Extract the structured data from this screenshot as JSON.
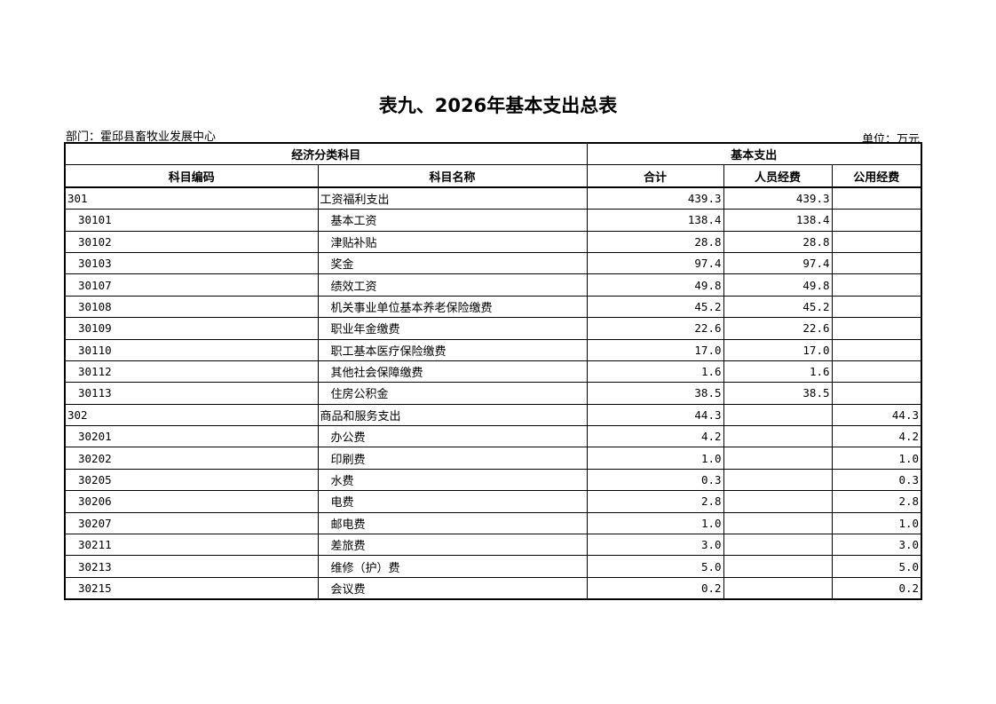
{
  "title": "表九、2026年基本支出总表",
  "department": "部门：霍邱县畜牧业发展中心",
  "unit": "单位：万元",
  "header": {
    "group_left": "经济分类科目",
    "group_right": "基本支出",
    "columns": [
      "科目编码",
      "科目名称",
      "合计",
      "人员经费",
      "公用经费"
    ]
  },
  "rows": [
    {
      "code": "301",
      "name": "工资福利支出",
      "total": "439.3",
      "personnel": "439.3",
      "public": "",
      "level": 1
    },
    {
      "code": "30101",
      "name": "基本工资",
      "total": "138.4",
      "personnel": "138.4",
      "public": "",
      "level": 2
    },
    {
      "code": "30102",
      "name": "津贴补贴",
      "total": "28.8",
      "personnel": "28.8",
      "public": "",
      "level": 2
    },
    {
      "code": "30103",
      "name": "奖金",
      "total": "97.4",
      "personnel": "97.4",
      "public": "",
      "level": 2
    },
    {
      "code": "30107",
      "name": "绩效工资",
      "total": "49.8",
      "personnel": "49.8",
      "public": "",
      "level": 2
    },
    {
      "code": "30108",
      "name": "机关事业单位基本养老保险缴费",
      "total": "45.2",
      "personnel": "45.2",
      "public": "",
      "level": 2
    },
    {
      "code": "30109",
      "name": "职业年金缴费",
      "total": "22.6",
      "personnel": "22.6",
      "public": "",
      "level": 2
    },
    {
      "code": "30110",
      "name": "职工基本医疗保险缴费",
      "total": "17.0",
      "personnel": "17.0",
      "public": "",
      "level": 2
    },
    {
      "code": "30112",
      "name": "其他社会保障缴费",
      "total": "1.6",
      "personnel": "1.6",
      "public": "",
      "level": 2
    },
    {
      "code": "30113",
      "name": "住房公积金",
      "total": "38.5",
      "personnel": "38.5",
      "public": "",
      "level": 2
    },
    {
      "code": "302",
      "name": "商品和服务支出",
      "total": "44.3",
      "personnel": "",
      "public": "44.3",
      "level": 1
    },
    {
      "code": "30201",
      "name": "办公费",
      "total": "4.2",
      "personnel": "",
      "public": "4.2",
      "level": 2
    },
    {
      "code": "30202",
      "name": "印刷费",
      "total": "1.0",
      "personnel": "",
      "public": "1.0",
      "level": 2
    },
    {
      "code": "30205",
      "name": "水费",
      "total": "0.3",
      "personnel": "",
      "public": "0.3",
      "level": 2
    },
    {
      "code": "30206",
      "name": "电费",
      "total": "2.8",
      "personnel": "",
      "public": "2.8",
      "level": 2
    },
    {
      "code": "30207",
      "name": "邮电费",
      "total": "1.0",
      "personnel": "",
      "public": "1.0",
      "level": 2
    },
    {
      "code": "30211",
      "name": "差旅费",
      "total": "3.0",
      "personnel": "",
      "public": "3.0",
      "level": 2
    },
    {
      "code": "30213",
      "name": "维修（护）费",
      "total": "5.0",
      "personnel": "",
      "public": "5.0",
      "level": 2
    },
    {
      "code": "30215",
      "name": "会议费",
      "total": "0.2",
      "personnel": "",
      "public": "0.2",
      "level": 2
    }
  ]
}
